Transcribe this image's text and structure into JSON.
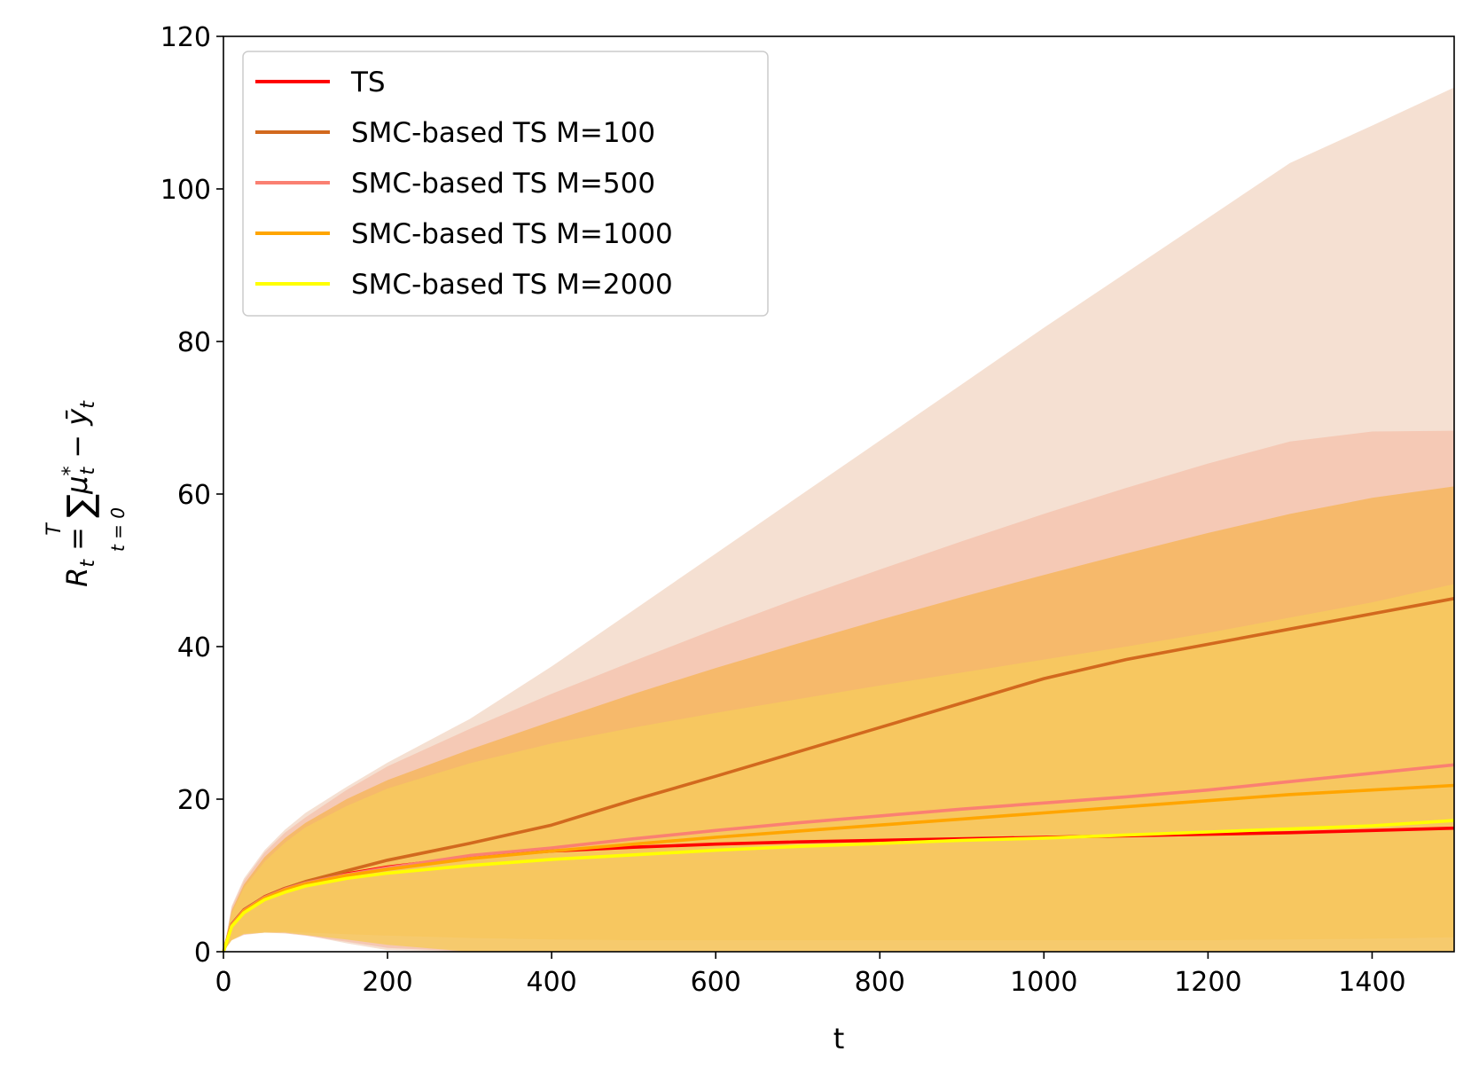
{
  "chart_data": {
    "type": "line",
    "xlabel": "t",
    "ylabel_parts": {
      "lhs": "R",
      "lhs_sub": "t",
      "eq": " = ",
      "sum": "∑",
      "sum_upper": "T",
      "sum_lower": "t = 0",
      "term1": "μ",
      "term1_sup": "*",
      "term1_sub": "t",
      "minus": " − ",
      "term2": "ȳ",
      "term2_sub": "t"
    },
    "xlim": [
      0,
      1500
    ],
    "ylim": [
      0,
      120
    ],
    "xticks": [
      0,
      200,
      400,
      600,
      800,
      1000,
      1200,
      1400
    ],
    "yticks": [
      0,
      20,
      40,
      60,
      80,
      100,
      120
    ],
    "legend_position": "upper-left",
    "grid": false,
    "series": [
      {
        "name": "TS",
        "color": "#ff0000",
        "band_color": "#f4c7c3",
        "x": [
          0,
          10,
          25,
          50,
          75,
          100,
          150,
          200,
          300,
          400,
          500,
          600,
          700,
          800,
          900,
          1000,
          1100,
          1200,
          1300,
          1400,
          1500
        ],
        "y": [
          0,
          3.5,
          5.4,
          7.2,
          8.3,
          9.1,
          10.2,
          11.1,
          12.4,
          13.2,
          13.7,
          14.1,
          14.4,
          14.6,
          14.8,
          15.0,
          15.2,
          15.4,
          15.6,
          15.9,
          16.2
        ],
        "lower": [
          0,
          1.5,
          2.2,
          2.5,
          2.5,
          2.2,
          1.4,
          0.6,
          0,
          0,
          0,
          0,
          0,
          0,
          0,
          0,
          0,
          0,
          0,
          0,
          0
        ],
        "upper": [
          0,
          5.5,
          8.6,
          11.9,
          14.1,
          16.0,
          19.0,
          21.6,
          24.8,
          26.4,
          27.4,
          28.2,
          28.8,
          29.2,
          29.6,
          30.0,
          30.4,
          30.8,
          31.2,
          31.8,
          32.4
        ]
      },
      {
        "name": "SMC-based TS M=100",
        "color": "#d2691e",
        "band_color": "#f3d9c8",
        "x": [
          0,
          10,
          25,
          50,
          75,
          100,
          150,
          200,
          300,
          400,
          500,
          600,
          700,
          800,
          900,
          1000,
          1100,
          1200,
          1300,
          1400,
          1500
        ],
        "y": [
          0,
          3.6,
          5.5,
          7.2,
          8.3,
          9.2,
          10.6,
          12.0,
          14.2,
          16.6,
          19.9,
          23.0,
          26.2,
          29.4,
          32.6,
          35.8,
          38.3,
          40.3,
          42.3,
          44.3,
          46.3
        ],
        "lower": [
          0,
          1.8,
          2.5,
          2.7,
          2.5,
          2.2,
          1.1,
          0.2,
          0,
          0,
          0,
          0,
          0,
          0,
          0,
          0,
          0,
          0,
          0,
          0,
          0
        ],
        "upper": [
          0,
          6.0,
          9.6,
          13.3,
          16.0,
          18.2,
          21.6,
          24.8,
          30.5,
          37.4,
          44.8,
          52.2,
          59.6,
          67.0,
          74.4,
          81.8,
          89.0,
          96.2,
          103.4,
          108.3,
          113.3
        ]
      },
      {
        "name": "SMC-based TS M=500",
        "color": "#fa8072",
        "band_color": "#f5c3ae",
        "x": [
          0,
          10,
          25,
          50,
          75,
          100,
          150,
          200,
          300,
          400,
          500,
          600,
          700,
          800,
          900,
          1000,
          1100,
          1200,
          1300,
          1400,
          1500
        ],
        "y": [
          0,
          3.5,
          5.4,
          7.1,
          8.2,
          9.0,
          10.1,
          11.0,
          12.6,
          13.6,
          14.8,
          15.9,
          16.9,
          17.8,
          18.7,
          19.5,
          20.3,
          21.2,
          22.3,
          23.4,
          24.5
        ],
        "lower": [
          0,
          1.6,
          2.3,
          2.5,
          2.4,
          2.1,
          1.3,
          0.5,
          0,
          0,
          0,
          0,
          0,
          0,
          0,
          0,
          0,
          0,
          0,
          0,
          0
        ],
        "upper": [
          0,
          5.8,
          9.3,
          13.0,
          15.6,
          17.6,
          21.2,
          24.3,
          29.2,
          33.8,
          38.1,
          42.3,
          46.3,
          50.1,
          53.8,
          57.4,
          60.8,
          64.0,
          66.9,
          68.2,
          68.3
        ]
      },
      {
        "name": "SMC-based TS M=1000",
        "color": "#ffa500",
        "band_color": "#f6b65a",
        "x": [
          0,
          10,
          25,
          50,
          75,
          100,
          150,
          200,
          300,
          400,
          500,
          600,
          700,
          800,
          900,
          1000,
          1100,
          1200,
          1300,
          1400,
          1500
        ],
        "y": [
          0,
          3.4,
          5.3,
          7.0,
          8.1,
          8.9,
          10.0,
          10.8,
          12.2,
          13.2,
          14.1,
          15.0,
          15.8,
          16.6,
          17.4,
          18.2,
          19.0,
          19.8,
          20.6,
          21.2,
          21.8
        ],
        "lower": [
          0,
          1.6,
          2.4,
          2.6,
          2.6,
          2.5,
          2.3,
          2.1,
          1.8,
          1.6,
          1.5,
          1.5,
          1.5,
          1.5,
          1.5,
          1.5,
          1.5,
          1.5,
          1.6,
          1.7,
          1.9
        ],
        "upper": [
          0,
          5.4,
          8.8,
          12.4,
          14.9,
          16.9,
          20.0,
          22.5,
          26.5,
          30.2,
          33.8,
          37.2,
          40.4,
          43.5,
          46.5,
          49.4,
          52.2,
          54.9,
          57.4,
          59.5,
          61.0
        ]
      },
      {
        "name": "SMC-based TS M=2000",
        "color": "#ffff00",
        "band_color": "#f7cb5e",
        "x": [
          0,
          10,
          25,
          50,
          75,
          100,
          150,
          200,
          300,
          400,
          500,
          600,
          700,
          800,
          900,
          1000,
          1100,
          1200,
          1300,
          1400,
          1500
        ],
        "y": [
          0,
          3.3,
          5.1,
          6.8,
          7.8,
          8.6,
          9.6,
          10.3,
          11.3,
          12.1,
          12.7,
          13.3,
          13.8,
          14.2,
          14.6,
          14.9,
          15.3,
          15.7,
          16.1,
          16.5,
          17.2
        ],
        "lower": [
          0,
          1.5,
          2.3,
          2.5,
          2.5,
          2.2,
          1.6,
          0.9,
          0,
          0,
          0,
          0,
          0,
          0,
          0,
          0,
          0,
          0,
          0,
          0,
          0
        ],
        "upper": [
          0,
          5.1,
          8.4,
          11.8,
          14.3,
          16.3,
          19.1,
          21.4,
          24.7,
          27.3,
          29.4,
          31.3,
          33.1,
          34.9,
          36.6,
          38.3,
          40.0,
          41.8,
          43.8,
          45.8,
          48.2
        ]
      }
    ]
  }
}
